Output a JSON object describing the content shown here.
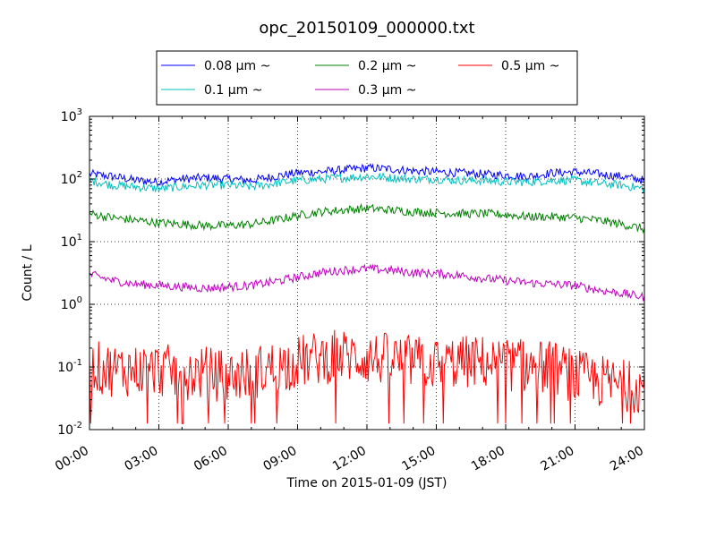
{
  "chart_data": {
    "type": "line",
    "title": "opc_20150109_000000.txt",
    "xlabel": "Time on 2015-01-09 (JST)",
    "ylabel": "Count / L",
    "xlim": [
      "00:00",
      "24:00"
    ],
    "x_ticks": [
      "00:00",
      "03:00",
      "06:00",
      "09:00",
      "12:00",
      "15:00",
      "18:00",
      "21:00",
      "24:00"
    ],
    "yscale": "log",
    "ylim": [
      0.01,
      1000
    ],
    "y_ticks": [
      {
        "base": "10",
        "exp": "-2"
      },
      {
        "base": "10",
        "exp": "-1"
      },
      {
        "base": "10",
        "exp": "0"
      },
      {
        "base": "10",
        "exp": "1"
      },
      {
        "base": "10",
        "exp": "2"
      },
      {
        "base": "10",
        "exp": "3"
      }
    ],
    "grid": true,
    "legend_position": "top",
    "series": [
      {
        "name": "0.08 μm ~",
        "color": "#0000ff",
        "hours": [
          0,
          1,
          2,
          3,
          4,
          5,
          6,
          7,
          8,
          9,
          10,
          11,
          12,
          13,
          14,
          15,
          16,
          17,
          18,
          19,
          20,
          21,
          22,
          23,
          24
        ],
        "values": [
          120,
          110,
          95,
          90,
          100,
          105,
          100,
          95,
          110,
          125,
          130,
          140,
          150,
          145,
          135,
          130,
          125,
          120,
          115,
          110,
          125,
          130,
          120,
          110,
          95
        ]
      },
      {
        "name": "0.1 μm ~",
        "color": "#00bfbf",
        "hours": [
          0,
          1,
          2,
          3,
          4,
          5,
          6,
          7,
          8,
          9,
          10,
          11,
          12,
          13,
          14,
          15,
          16,
          17,
          18,
          19,
          20,
          21,
          22,
          23,
          24
        ],
        "values": [
          95,
          80,
          75,
          70,
          75,
          80,
          80,
          75,
          85,
          95,
          100,
          105,
          110,
          105,
          100,
          100,
          95,
          95,
          90,
          90,
          95,
          95,
          85,
          80,
          70
        ]
      },
      {
        "name": "0.2 μm ~",
        "color": "#008000",
        "hours": [
          0,
          1,
          2,
          3,
          4,
          5,
          6,
          7,
          8,
          9,
          10,
          11,
          12,
          13,
          14,
          15,
          16,
          17,
          18,
          19,
          20,
          21,
          22,
          23,
          24
        ],
        "values": [
          28,
          24,
          22,
          20,
          19,
          18,
          18,
          19,
          22,
          26,
          30,
          32,
          34,
          32,
          30,
          29,
          28,
          28,
          27,
          25,
          25,
          24,
          22,
          19,
          16
        ]
      },
      {
        "name": "0.3 μm ~",
        "color": "#bf00bf",
        "hours": [
          0,
          1,
          2,
          3,
          4,
          5,
          6,
          7,
          8,
          9,
          10,
          11,
          12,
          13,
          14,
          15,
          16,
          17,
          18,
          19,
          20,
          21,
          22,
          23,
          24
        ],
        "values": [
          3.0,
          2.4,
          2.1,
          2.0,
          1.9,
          1.8,
          1.9,
          2.0,
          2.3,
          2.7,
          3.2,
          3.5,
          3.7,
          3.5,
          3.2,
          3.1,
          2.9,
          2.6,
          2.4,
          2.2,
          2.1,
          2.0,
          1.7,
          1.5,
          1.3
        ]
      },
      {
        "name": "0.5 μm ~",
        "color": "#ff0000",
        "hours": [
          0,
          1,
          2,
          3,
          4,
          5,
          6,
          7,
          8,
          9,
          10,
          11,
          12,
          13,
          14,
          15,
          16,
          17,
          18,
          19,
          20,
          21,
          22,
          23,
          24
        ],
        "values": [
          0.1,
          0.09,
          0.09,
          0.09,
          0.08,
          0.08,
          0.07,
          0.08,
          0.1,
          0.12,
          0.14,
          0.15,
          0.14,
          0.13,
          0.12,
          0.11,
          0.12,
          0.12,
          0.11,
          0.1,
          0.1,
          0.07,
          0.06,
          0.05,
          0.05
        ]
      }
    ]
  }
}
